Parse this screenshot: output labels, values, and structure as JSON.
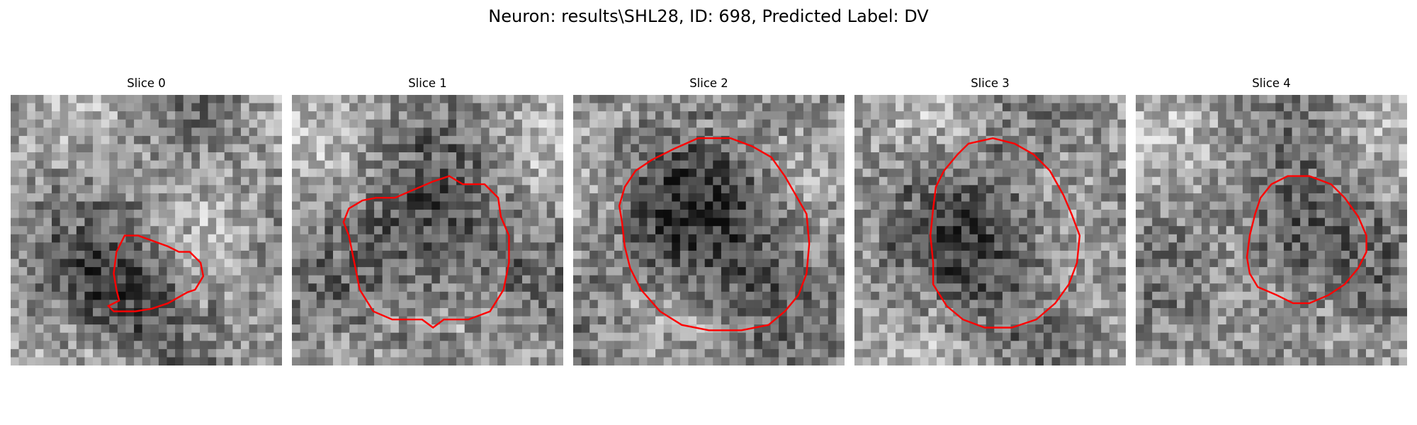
{
  "figure": {
    "title": "Neuron: results\\SHL28, ID: 698, Predicted Label: DV"
  },
  "outline_color": "#ff0000",
  "panels": [
    {
      "title": "Slice 0",
      "seed": 11,
      "dark_center": [
        0.42,
        0.72
      ],
      "dark_radius": 0.3,
      "contour": [
        [
          0.42,
          0.52
        ],
        [
          0.47,
          0.52
        ],
        [
          0.58,
          0.56
        ],
        [
          0.62,
          0.58
        ],
        [
          0.66,
          0.58
        ],
        [
          0.7,
          0.62
        ],
        [
          0.71,
          0.67
        ],
        [
          0.68,
          0.72
        ],
        [
          0.65,
          0.73
        ],
        [
          0.58,
          0.77
        ],
        [
          0.52,
          0.79
        ],
        [
          0.46,
          0.8
        ],
        [
          0.38,
          0.8
        ],
        [
          0.36,
          0.78
        ],
        [
          0.4,
          0.76
        ],
        [
          0.39,
          0.72
        ],
        [
          0.38,
          0.66
        ],
        [
          0.39,
          0.58
        ]
      ]
    },
    {
      "title": "Slice 1",
      "seed": 23,
      "dark_center": [
        0.5,
        0.55
      ],
      "dark_radius": 0.34,
      "contour": [
        [
          0.38,
          0.38
        ],
        [
          0.45,
          0.35
        ],
        [
          0.52,
          0.32
        ],
        [
          0.58,
          0.3
        ],
        [
          0.63,
          0.33
        ],
        [
          0.71,
          0.33
        ],
        [
          0.76,
          0.38
        ],
        [
          0.77,
          0.45
        ],
        [
          0.8,
          0.52
        ],
        [
          0.8,
          0.62
        ],
        [
          0.78,
          0.72
        ],
        [
          0.73,
          0.8
        ],
        [
          0.65,
          0.83
        ],
        [
          0.56,
          0.83
        ],
        [
          0.52,
          0.86
        ],
        [
          0.48,
          0.83
        ],
        [
          0.37,
          0.83
        ],
        [
          0.3,
          0.8
        ],
        [
          0.25,
          0.72
        ],
        [
          0.23,
          0.62
        ],
        [
          0.21,
          0.52
        ],
        [
          0.19,
          0.47
        ],
        [
          0.21,
          0.42
        ],
        [
          0.26,
          0.39
        ],
        [
          0.31,
          0.38
        ]
      ]
    },
    {
      "title": "Slice 2",
      "seed": 37,
      "dark_center": [
        0.52,
        0.5
      ],
      "dark_radius": 0.42,
      "contour": [
        [
          0.37,
          0.2
        ],
        [
          0.46,
          0.16
        ],
        [
          0.58,
          0.16
        ],
        [
          0.66,
          0.19
        ],
        [
          0.73,
          0.23
        ],
        [
          0.78,
          0.3
        ],
        [
          0.82,
          0.37
        ],
        [
          0.86,
          0.44
        ],
        [
          0.87,
          0.55
        ],
        [
          0.86,
          0.66
        ],
        [
          0.83,
          0.74
        ],
        [
          0.78,
          0.8
        ],
        [
          0.72,
          0.85
        ],
        [
          0.62,
          0.87
        ],
        [
          0.5,
          0.87
        ],
        [
          0.4,
          0.85
        ],
        [
          0.32,
          0.8
        ],
        [
          0.25,
          0.72
        ],
        [
          0.21,
          0.64
        ],
        [
          0.19,
          0.56
        ],
        [
          0.18,
          0.47
        ],
        [
          0.17,
          0.41
        ],
        [
          0.19,
          0.34
        ],
        [
          0.23,
          0.28
        ],
        [
          0.29,
          0.24
        ]
      ]
    },
    {
      "title": "Slice 3",
      "seed": 51,
      "dark_center": [
        0.5,
        0.55
      ],
      "dark_radius": 0.34,
      "contour": [
        [
          0.42,
          0.18
        ],
        [
          0.51,
          0.16
        ],
        [
          0.59,
          0.18
        ],
        [
          0.66,
          0.22
        ],
        [
          0.72,
          0.28
        ],
        [
          0.77,
          0.37
        ],
        [
          0.8,
          0.44
        ],
        [
          0.83,
          0.52
        ],
        [
          0.82,
          0.62
        ],
        [
          0.79,
          0.7
        ],
        [
          0.74,
          0.77
        ],
        [
          0.67,
          0.83
        ],
        [
          0.58,
          0.86
        ],
        [
          0.48,
          0.86
        ],
        [
          0.4,
          0.83
        ],
        [
          0.34,
          0.78
        ],
        [
          0.29,
          0.7
        ],
        [
          0.29,
          0.62
        ],
        [
          0.28,
          0.52
        ],
        [
          0.29,
          0.42
        ],
        [
          0.3,
          0.34
        ],
        [
          0.33,
          0.28
        ],
        [
          0.38,
          0.22
        ]
      ]
    },
    {
      "title": "Slice 4",
      "seed": 67,
      "dark_center": [
        0.62,
        0.56
      ],
      "dark_radius": 0.28,
      "contour": [
        [
          0.5,
          0.33
        ],
        [
          0.56,
          0.3
        ],
        [
          0.64,
          0.3
        ],
        [
          0.72,
          0.33
        ],
        [
          0.77,
          0.38
        ],
        [
          0.82,
          0.45
        ],
        [
          0.85,
          0.52
        ],
        [
          0.85,
          0.58
        ],
        [
          0.82,
          0.64
        ],
        [
          0.77,
          0.7
        ],
        [
          0.71,
          0.74
        ],
        [
          0.64,
          0.77
        ],
        [
          0.58,
          0.77
        ],
        [
          0.52,
          0.74
        ],
        [
          0.45,
          0.71
        ],
        [
          0.42,
          0.66
        ],
        [
          0.41,
          0.6
        ],
        [
          0.42,
          0.52
        ],
        [
          0.44,
          0.44
        ],
        [
          0.46,
          0.38
        ]
      ]
    }
  ]
}
